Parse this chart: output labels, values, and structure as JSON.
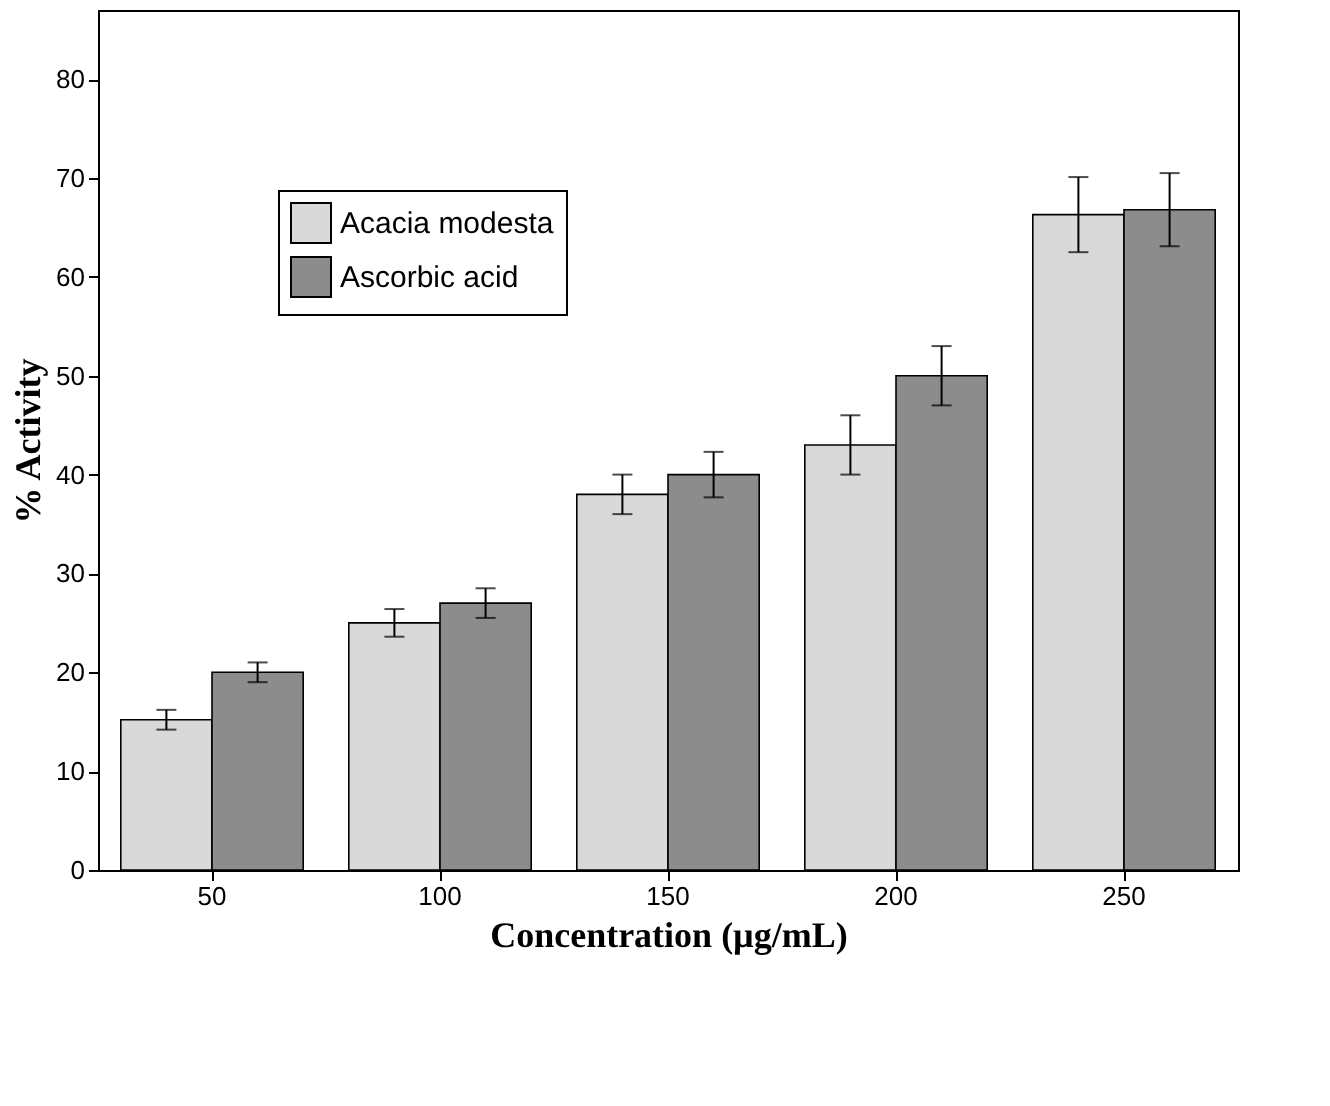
{
  "chart_data": {
    "type": "bar",
    "xlabel": "Concentration (µg/mL)",
    "ylabel": "% Activity",
    "categories": [
      "50",
      "100",
      "150",
      "200",
      "250"
    ],
    "series": [
      {
        "name": "Acacia modesta",
        "color": "#d9d9d9",
        "values": [
          15.2,
          25,
          38,
          43,
          66.3
        ],
        "errors": [
          1,
          1.4,
          2,
          3,
          3.8
        ]
      },
      {
        "name": "Ascorbic acid",
        "color": "#8c8c8c",
        "values": [
          20,
          27,
          40,
          50,
          66.8
        ],
        "errors": [
          1,
          1.5,
          2.3,
          3,
          3.7
        ]
      }
    ],
    "ylim": [
      0,
      87
    ],
    "yticks": [
      0,
      10,
      20,
      30,
      40,
      50,
      60,
      70,
      80
    ],
    "grid": false,
    "legend": "top left"
  }
}
